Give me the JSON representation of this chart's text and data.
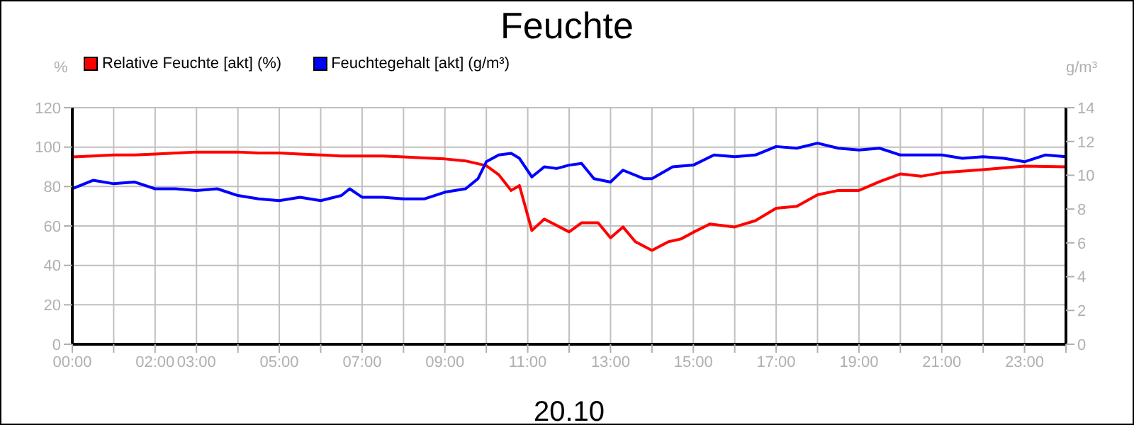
{
  "chart_data": {
    "type": "line",
    "title": "Feuchte",
    "xlabel": "20.10",
    "ylabel": "%",
    "y2label": "g/m³",
    "xlim": [
      0,
      24
    ],
    "xticks": [
      {
        "value": 0,
        "label": "00:00"
      },
      {
        "value": 1,
        "label": null
      },
      {
        "value": 2,
        "label": "02:00"
      },
      {
        "value": 3,
        "label": "03:00"
      },
      {
        "value": 4,
        "label": null
      },
      {
        "value": 5,
        "label": "05:00"
      },
      {
        "value": 6,
        "label": null
      },
      {
        "value": 7,
        "label": "07:00"
      },
      {
        "value": 8,
        "label": null
      },
      {
        "value": 9,
        "label": "09:00"
      },
      {
        "value": 10,
        "label": null
      },
      {
        "value": 11,
        "label": "11:00"
      },
      {
        "value": 12,
        "label": null
      },
      {
        "value": 13,
        "label": "13:00"
      },
      {
        "value": 14,
        "label": null
      },
      {
        "value": 15,
        "label": "15:00"
      },
      {
        "value": 16,
        "label": null
      },
      {
        "value": 17,
        "label": "17:00"
      },
      {
        "value": 18,
        "label": null
      },
      {
        "value": 19,
        "label": "19:00"
      },
      {
        "value": 20,
        "label": null
      },
      {
        "value": 21,
        "label": "21:00"
      },
      {
        "value": 22,
        "label": null
      },
      {
        "value": 23,
        "label": "23:00"
      },
      {
        "value": 24,
        "label": null
      }
    ],
    "ylim": [
      0,
      120
    ],
    "yticks": [
      0,
      20,
      40,
      60,
      80,
      100,
      120
    ],
    "y2lim": [
      0,
      14
    ],
    "y2ticks": [
      0,
      2,
      4,
      6,
      8,
      10,
      12,
      14
    ],
    "grid": true,
    "legend": "top left",
    "marker": "none",
    "line_style": "solid",
    "series": [
      {
        "name": "Relative Feuchte [akt] (%)",
        "color": "#ff0000",
        "x": [
          0,
          0.5,
          1,
          1.5,
          2,
          2.5,
          3,
          3.5,
          4,
          4.5,
          5,
          5.5,
          6,
          6.5,
          7,
          7.5,
          8,
          8.5,
          9,
          9.5,
          10,
          10.3,
          10.6,
          10.8,
          11.1,
          11.4,
          12,
          12.3,
          12.7,
          13,
          13.3,
          13.6,
          14,
          14.4,
          14.7,
          15,
          15.4,
          16,
          16.5,
          17,
          17.5,
          18,
          18.5,
          19,
          19.5,
          20,
          20.5,
          21,
          22,
          23,
          24
        ],
        "values": [
          95,
          95.5,
          96,
          96,
          96.5,
          97,
          97.5,
          97.5,
          97.5,
          97,
          97,
          96.5,
          96,
          95.5,
          95.5,
          95.5,
          95,
          94.5,
          94,
          93,
          90.6,
          86,
          78,
          80.5,
          57.7,
          63.5,
          57,
          61.6,
          61.6,
          54,
          59.5,
          52,
          47.6,
          52,
          53.4,
          56.8,
          61,
          59.5,
          62.7,
          69,
          70,
          75.8,
          78,
          78,
          82.5,
          86.4,
          85.2,
          87,
          88.6,
          90.4,
          90
        ]
      },
      {
        "name": "Feuchtegehalt [akt] (g/m³)",
        "color": "#0000ff",
        "axis": "y2",
        "x": [
          0,
          0.5,
          1,
          1.5,
          2,
          2.5,
          3,
          3.5,
          4,
          4.5,
          5,
          5.5,
          6,
          6.5,
          6.7,
          7,
          7.5,
          8,
          8.5,
          9,
          9.5,
          9.8,
          10,
          10.3,
          10.6,
          10.8,
          11.1,
          11.4,
          11.7,
          12,
          12.3,
          12.6,
          13,
          13.3,
          13.8,
          14,
          14.5,
          15,
          15.5,
          16,
          16.5,
          17,
          17.5,
          18,
          18.5,
          19,
          19.5,
          20,
          20.5,
          21,
          21.5,
          22,
          22.5,
          23,
          23.5,
          24
        ],
        "values": [
          9.2,
          9.7,
          9.5,
          9.6,
          9.2,
          9.2,
          9.1,
          9.2,
          8.8,
          8.6,
          8.5,
          8.7,
          8.5,
          8.8,
          9.2,
          8.7,
          8.7,
          8.6,
          8.6,
          9,
          9.2,
          9.8,
          10.8,
          11.2,
          11.3,
          11,
          9.9,
          10.5,
          10.4,
          10.6,
          10.7,
          9.8,
          9.6,
          10.3,
          9.8,
          9.8,
          10.5,
          10.6,
          11.2,
          11.1,
          11.2,
          11.7,
          11.6,
          11.9,
          11.6,
          11.5,
          11.6,
          11.2,
          11.2,
          11.2,
          11,
          11.1,
          11,
          10.8,
          11.2,
          11.1
        ]
      }
    ]
  }
}
